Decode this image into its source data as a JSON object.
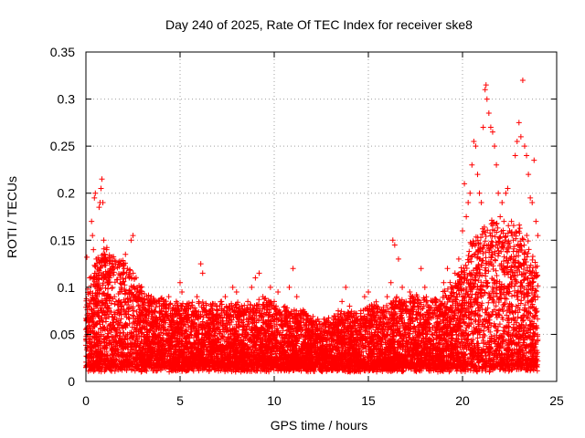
{
  "chart_data": {
    "type": "scatter",
    "title": "Day 240 of 2025, Rate Of TEC Index for receiver ske8",
    "xlabel": "GPS time / hours",
    "ylabel": "ROTI / TECUs",
    "xlim": [
      0,
      25
    ],
    "ylim": [
      0,
      0.35
    ],
    "x_ticks": [
      0,
      5,
      10,
      15,
      20,
      25
    ],
    "x_tick_labels": [
      "0",
      "5",
      "10",
      "15",
      "20",
      "25"
    ],
    "y_ticks": [
      0,
      0.05,
      0.1,
      0.15,
      0.2,
      0.25,
      0.3,
      0.35
    ],
    "y_tick_labels": [
      "0",
      "0.05",
      "0.1",
      "0.15",
      "0.2",
      "0.25",
      "0.3",
      "0.35"
    ],
    "grid": true,
    "marker": "plus",
    "color": "#ff0000",
    "series": [
      {
        "points": [
          [
            0.05,
            0.132
          ],
          [
            0.1,
            0.098
          ],
          [
            0.15,
            0.065
          ],
          [
            0.2,
            0.11
          ],
          [
            0.3,
            0.17
          ],
          [
            0.35,
            0.155
          ],
          [
            0.4,
            0.14
          ],
          [
            0.45,
            0.195
          ],
          [
            0.5,
            0.2
          ],
          [
            0.55,
            0.13
          ],
          [
            0.6,
            0.09
          ],
          [
            0.7,
            0.185
          ],
          [
            0.75,
            0.19
          ],
          [
            0.8,
            0.205
          ],
          [
            0.85,
            0.215
          ],
          [
            0.9,
            0.19
          ],
          [
            0.95,
            0.15
          ],
          [
            1.0,
            0.135
          ],
          [
            1.1,
            0.14
          ],
          [
            1.2,
            0.115
          ],
          [
            1.3,
            0.09
          ],
          [
            1.4,
            0.1
          ],
          [
            1.5,
            0.12
          ],
          [
            1.6,
            0.085
          ],
          [
            1.7,
            0.075
          ],
          [
            1.8,
            0.095
          ],
          [
            1.9,
            0.08
          ],
          [
            2.0,
            0.125
          ],
          [
            2.1,
            0.135
          ],
          [
            2.2,
            0.12
          ],
          [
            2.3,
            0.11
          ],
          [
            2.4,
            0.15
          ],
          [
            2.5,
            0.155
          ],
          [
            2.6,
            0.09
          ],
          [
            2.8,
            0.08
          ],
          [
            3.0,
            0.07
          ],
          [
            3.2,
            0.075
          ],
          [
            3.4,
            0.06
          ],
          [
            3.6,
            0.05
          ],
          [
            3.8,
            0.065
          ],
          [
            4.0,
            0.08
          ],
          [
            4.2,
            0.07
          ],
          [
            4.4,
            0.09
          ],
          [
            4.6,
            0.075
          ],
          [
            4.8,
            0.085
          ],
          [
            5.0,
            0.105
          ],
          [
            5.1,
            0.095
          ],
          [
            5.3,
            0.08
          ],
          [
            5.5,
            0.065
          ],
          [
            5.7,
            0.07
          ],
          [
            5.9,
            0.09
          ],
          [
            6.1,
            0.125
          ],
          [
            6.2,
            0.115
          ],
          [
            6.4,
            0.07
          ],
          [
            6.6,
            0.065
          ],
          [
            6.8,
            0.06
          ],
          [
            7.0,
            0.075
          ],
          [
            7.2,
            0.085
          ],
          [
            7.4,
            0.09
          ],
          [
            7.6,
            0.08
          ],
          [
            7.8,
            0.1
          ],
          [
            8.0,
            0.095
          ],
          [
            8.2,
            0.06
          ],
          [
            8.4,
            0.07
          ],
          [
            8.6,
            0.085
          ],
          [
            8.8,
            0.1
          ],
          [
            9.0,
            0.11
          ],
          [
            9.2,
            0.115
          ],
          [
            9.4,
            0.09
          ],
          [
            9.6,
            0.08
          ],
          [
            9.8,
            0.1
          ],
          [
            10.0,
            0.085
          ],
          [
            10.2,
            0.095
          ],
          [
            10.4,
            0.07
          ],
          [
            10.6,
            0.075
          ],
          [
            10.8,
            0.1
          ],
          [
            11.0,
            0.12
          ],
          [
            11.2,
            0.09
          ],
          [
            11.4,
            0.075
          ],
          [
            11.6,
            0.06
          ],
          [
            11.8,
            0.07
          ],
          [
            12.0,
            0.055
          ],
          [
            12.2,
            0.05
          ],
          [
            12.4,
            0.045
          ],
          [
            12.6,
            0.06
          ],
          [
            12.8,
            0.065
          ],
          [
            13.0,
            0.06
          ],
          [
            13.2,
            0.055
          ],
          [
            13.4,
            0.075
          ],
          [
            13.6,
            0.085
          ],
          [
            13.8,
            0.1
          ],
          [
            14.0,
            0.08
          ],
          [
            14.2,
            0.07
          ],
          [
            14.4,
            0.065
          ],
          [
            14.6,
            0.075
          ],
          [
            14.8,
            0.09
          ],
          [
            15.0,
            0.095
          ],
          [
            15.2,
            0.08
          ],
          [
            15.4,
            0.07
          ],
          [
            15.6,
            0.06
          ],
          [
            15.8,
            0.075
          ],
          [
            16.0,
            0.09
          ],
          [
            16.2,
            0.105
          ],
          [
            16.3,
            0.15
          ],
          [
            16.4,
            0.145
          ],
          [
            16.6,
            0.13
          ],
          [
            16.8,
            0.1
          ],
          [
            17.0,
            0.085
          ],
          [
            17.2,
            0.095
          ],
          [
            17.4,
            0.08
          ],
          [
            17.6,
            0.09
          ],
          [
            17.8,
            0.12
          ],
          [
            18.0,
            0.1
          ],
          [
            18.2,
            0.075
          ],
          [
            18.4,
            0.085
          ],
          [
            18.6,
            0.07
          ],
          [
            18.8,
            0.08
          ],
          [
            19.0,
            0.105
          ],
          [
            19.2,
            0.12
          ],
          [
            19.4,
            0.095
          ],
          [
            19.6,
            0.115
          ],
          [
            19.8,
            0.13
          ],
          [
            20.0,
            0.16
          ],
          [
            20.1,
            0.21
          ],
          [
            20.2,
            0.175
          ],
          [
            20.3,
            0.19
          ],
          [
            20.4,
            0.2
          ],
          [
            20.5,
            0.23
          ],
          [
            20.6,
            0.255
          ],
          [
            20.7,
            0.25
          ],
          [
            20.8,
            0.22
          ],
          [
            20.9,
            0.2
          ],
          [
            21.0,
            0.19
          ],
          [
            21.1,
            0.27
          ],
          [
            21.2,
            0.31
          ],
          [
            21.25,
            0.315
          ],
          [
            21.3,
            0.3
          ],
          [
            21.4,
            0.285
          ],
          [
            21.5,
            0.27
          ],
          [
            21.6,
            0.265
          ],
          [
            21.7,
            0.25
          ],
          [
            21.8,
            0.23
          ],
          [
            21.9,
            0.2
          ],
          [
            22.0,
            0.175
          ],
          [
            22.1,
            0.19
          ],
          [
            22.2,
            0.17
          ],
          [
            22.3,
            0.2
          ],
          [
            22.4,
            0.205
          ],
          [
            22.5,
            0.16
          ],
          [
            22.6,
            0.17
          ],
          [
            22.7,
            0.15
          ],
          [
            22.8,
            0.24
          ],
          [
            22.9,
            0.255
          ],
          [
            23.0,
            0.275
          ],
          [
            23.1,
            0.26
          ],
          [
            23.2,
            0.32
          ],
          [
            23.3,
            0.25
          ],
          [
            23.4,
            0.24
          ],
          [
            23.5,
            0.22
          ],
          [
            23.6,
            0.195
          ],
          [
            23.7,
            0.19
          ],
          [
            23.8,
            0.235
          ],
          [
            23.9,
            0.17
          ],
          [
            24.0,
            0.155
          ]
        ]
      }
    ],
    "background_baseline": {
      "note_free": true,
      "profile": [
        [
          0,
          0.05
        ],
        [
          0.5,
          0.075
        ],
        [
          1,
          0.085
        ],
        [
          1.5,
          0.08
        ],
        [
          2,
          0.075
        ],
        [
          2.5,
          0.07
        ],
        [
          3,
          0.055
        ],
        [
          3.5,
          0.05
        ],
        [
          4,
          0.05
        ],
        [
          4.5,
          0.045
        ],
        [
          5,
          0.045
        ],
        [
          5.5,
          0.045
        ],
        [
          6,
          0.045
        ],
        [
          6.5,
          0.045
        ],
        [
          7,
          0.045
        ],
        [
          7.5,
          0.045
        ],
        [
          8,
          0.045
        ],
        [
          8.5,
          0.045
        ],
        [
          9,
          0.045
        ],
        [
          9.5,
          0.05
        ],
        [
          10,
          0.045
        ],
        [
          10.5,
          0.045
        ],
        [
          11,
          0.04
        ],
        [
          11.5,
          0.04
        ],
        [
          12,
          0.035
        ],
        [
          12.5,
          0.035
        ],
        [
          13,
          0.035
        ],
        [
          13.5,
          0.04
        ],
        [
          14,
          0.04
        ],
        [
          14.5,
          0.04
        ],
        [
          15,
          0.045
        ],
        [
          15.5,
          0.045
        ],
        [
          16,
          0.045
        ],
        [
          16.5,
          0.05
        ],
        [
          17,
          0.05
        ],
        [
          17.5,
          0.05
        ],
        [
          18,
          0.05
        ],
        [
          18.5,
          0.05
        ],
        [
          19,
          0.055
        ],
        [
          19.5,
          0.06
        ],
        [
          20,
          0.07
        ],
        [
          20.5,
          0.09
        ],
        [
          21,
          0.1
        ],
        [
          21.5,
          0.11
        ],
        [
          22,
          0.1
        ],
        [
          22.5,
          0.1
        ],
        [
          23,
          0.1
        ],
        [
          23.5,
          0.09
        ],
        [
          24,
          0.07
        ]
      ]
    }
  }
}
